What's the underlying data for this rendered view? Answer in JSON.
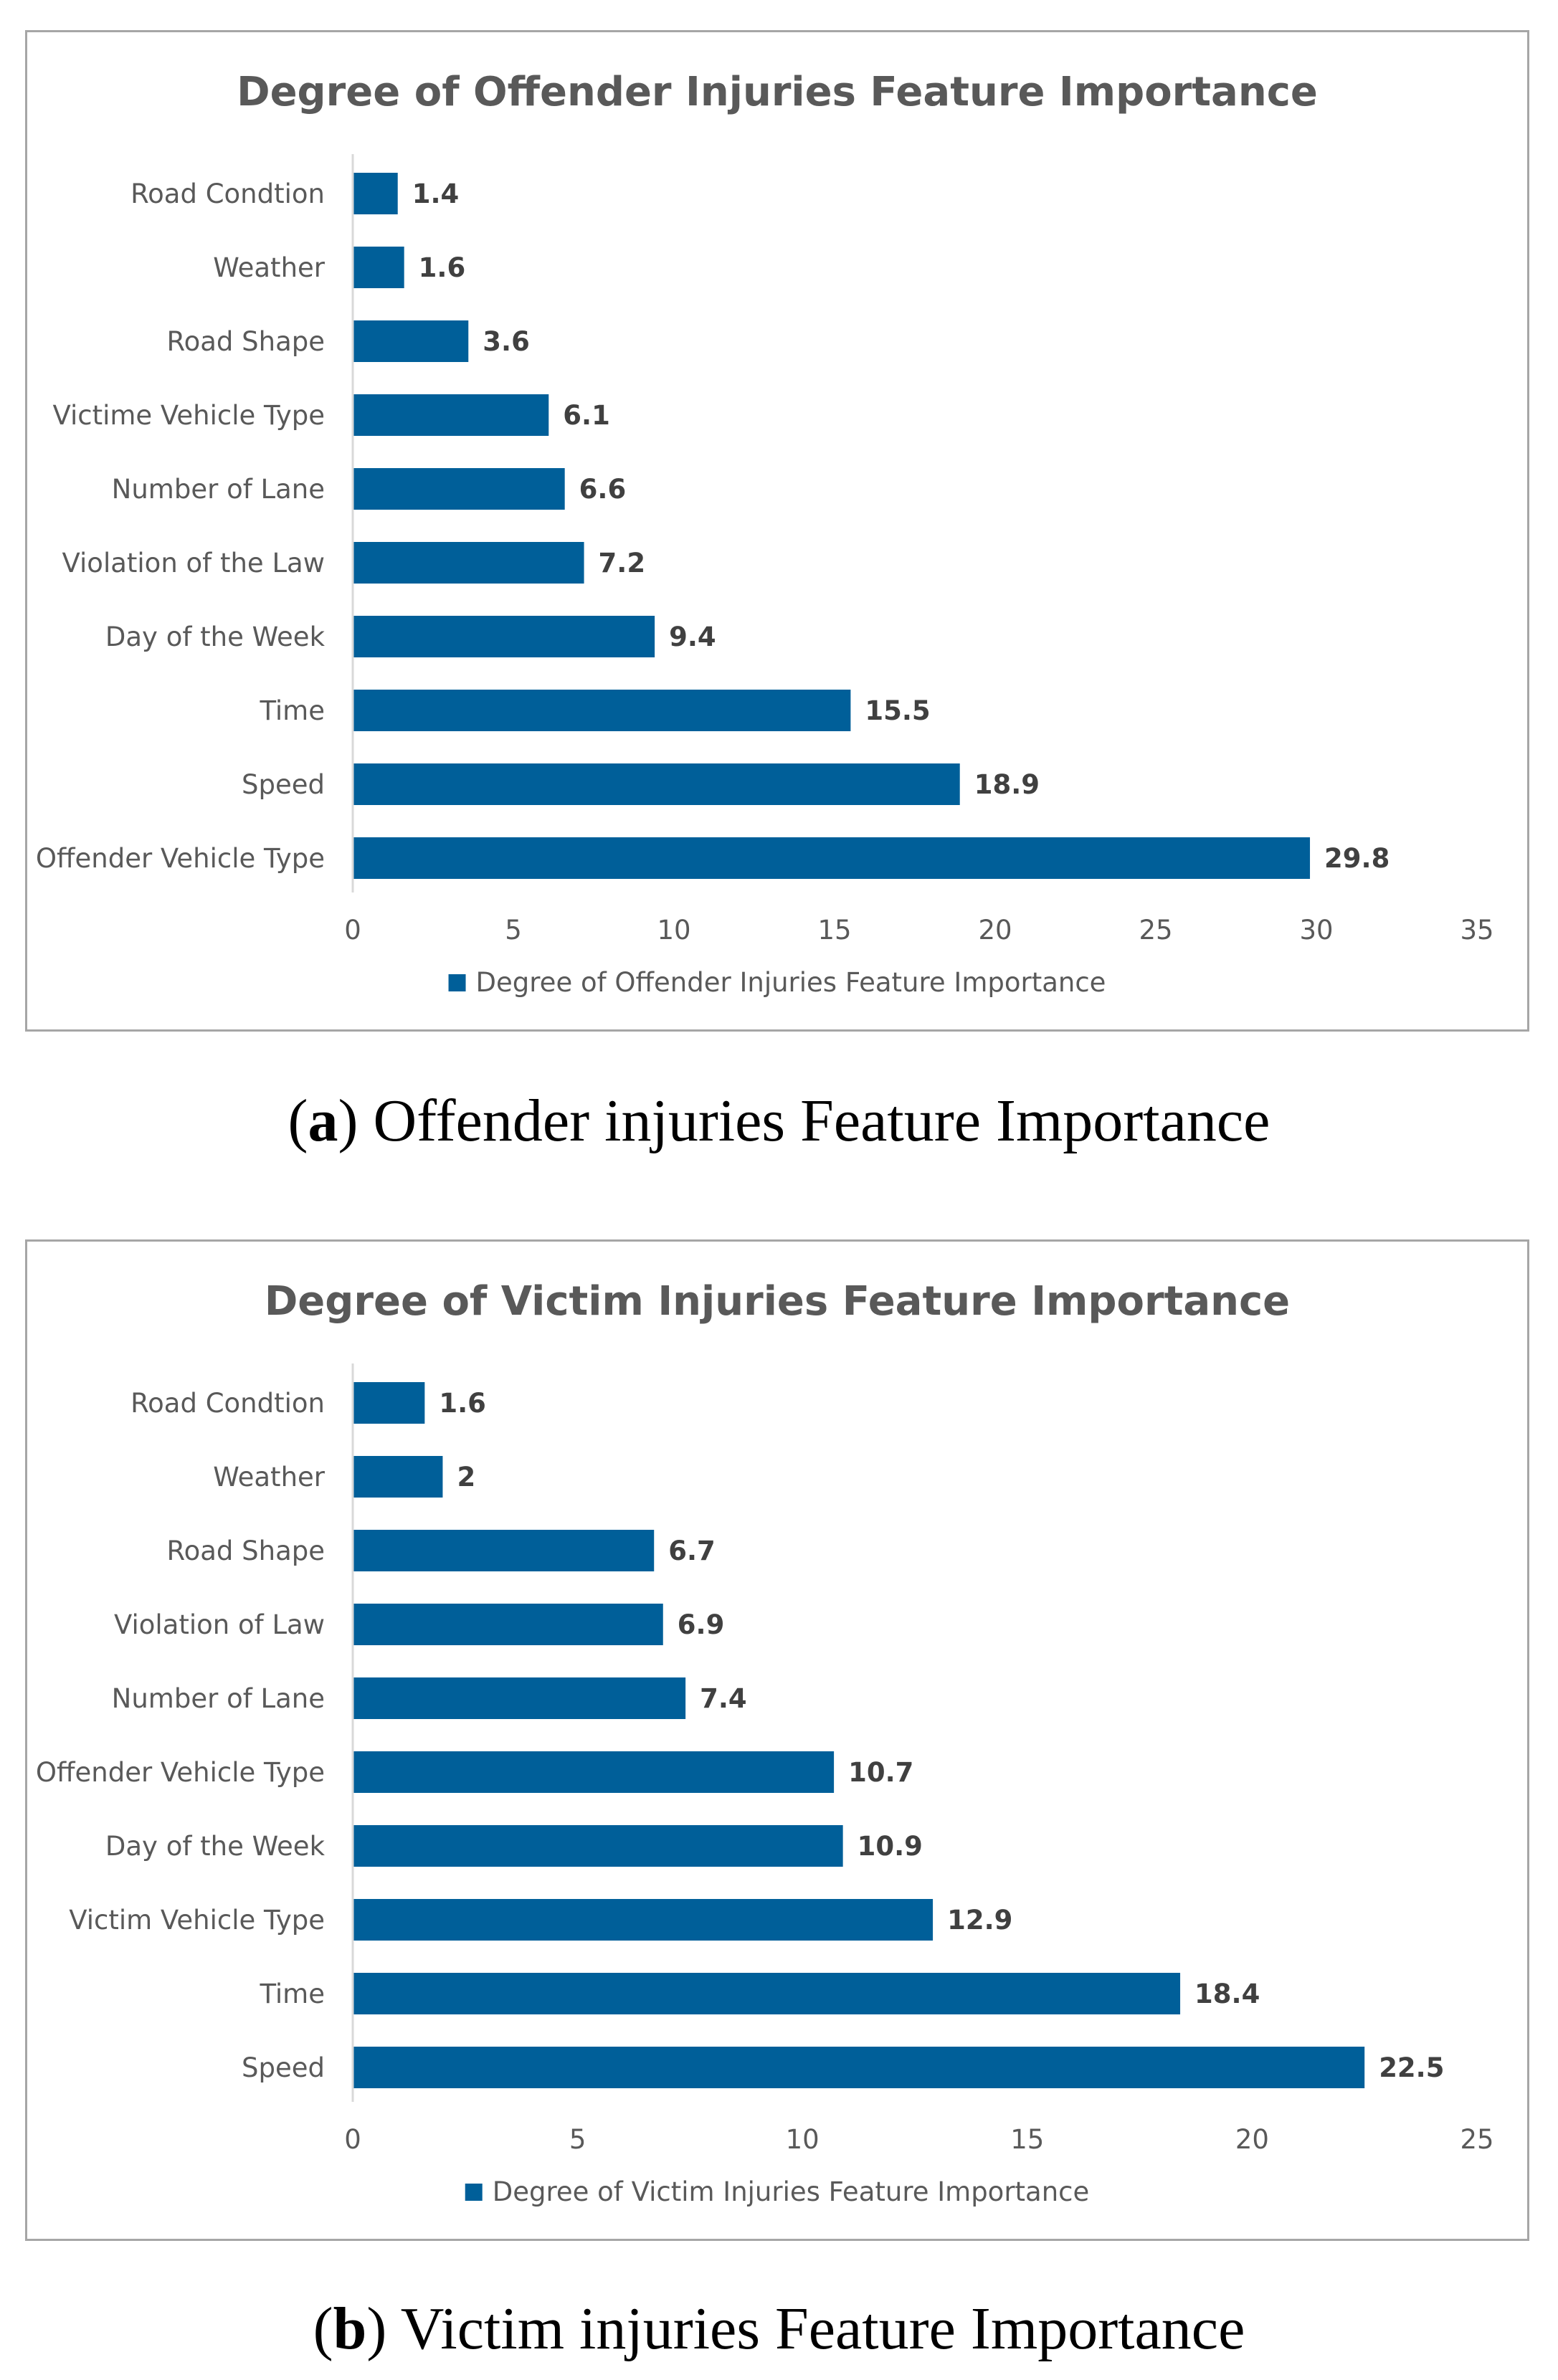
{
  "colors": {
    "bar": "#005f99",
    "axis": "#d9d9d9",
    "text": "#595959"
  },
  "chart_data": [
    {
      "type": "bar",
      "orientation": "horizontal",
      "title": "Degree of Offender Injuries Feature Importance",
      "categories": [
        "Road Condtion",
        "Weather",
        "Road Shape",
        "Victime Vehicle Type",
        "Number of Lane",
        "Violation of the Law",
        "Day of the Week",
        "Time",
        "Speed",
        "Offender Vehicle Type"
      ],
      "values": [
        1.4,
        1.6,
        3.6,
        6.1,
        6.6,
        7.2,
        9.4,
        15.5,
        18.9,
        29.8
      ],
      "value_labels": [
        "1.4",
        "1.6",
        "3.6",
        "6.1",
        "6.6",
        "7.2",
        "9.4",
        "15.5",
        "18.9",
        "29.8"
      ],
      "xlim": [
        0,
        35
      ],
      "ticks": [
        "0",
        "5",
        "10",
        "15",
        "20",
        "25",
        "30",
        "35"
      ],
      "legend": [
        "Degree of Offender Injuries Feature Importance"
      ],
      "legend_position": "bottom",
      "grid": false
    },
    {
      "type": "bar",
      "orientation": "horizontal",
      "title": "Degree of Victim Injuries Feature Importance",
      "categories": [
        "Road Condtion",
        "Weather",
        "Road Shape",
        "Violation of Law",
        "Number of Lane",
        "Offender Vehicle Type",
        "Day of the Week",
        "Victim Vehicle Type",
        "Time",
        "Speed"
      ],
      "values": [
        1.6,
        2,
        6.7,
        6.9,
        7.4,
        10.7,
        10.9,
        12.9,
        18.4,
        22.5
      ],
      "value_labels": [
        "1.6",
        "2",
        "6.7",
        "6.9",
        "7.4",
        "10.7",
        "10.9",
        "12.9",
        "18.4",
        "22.5"
      ],
      "xlim": [
        0,
        25
      ],
      "ticks": [
        "0",
        "5",
        "10",
        "15",
        "20",
        "25"
      ],
      "legend": [
        "Degree of Victim Injuries Feature Importance"
      ],
      "legend_position": "bottom",
      "grid": false
    }
  ],
  "captions": [
    {
      "letter": "a",
      "text": " Offender injuries Feature Importance"
    },
    {
      "letter": "b",
      "text": " Victim injuries Feature Importance"
    }
  ]
}
